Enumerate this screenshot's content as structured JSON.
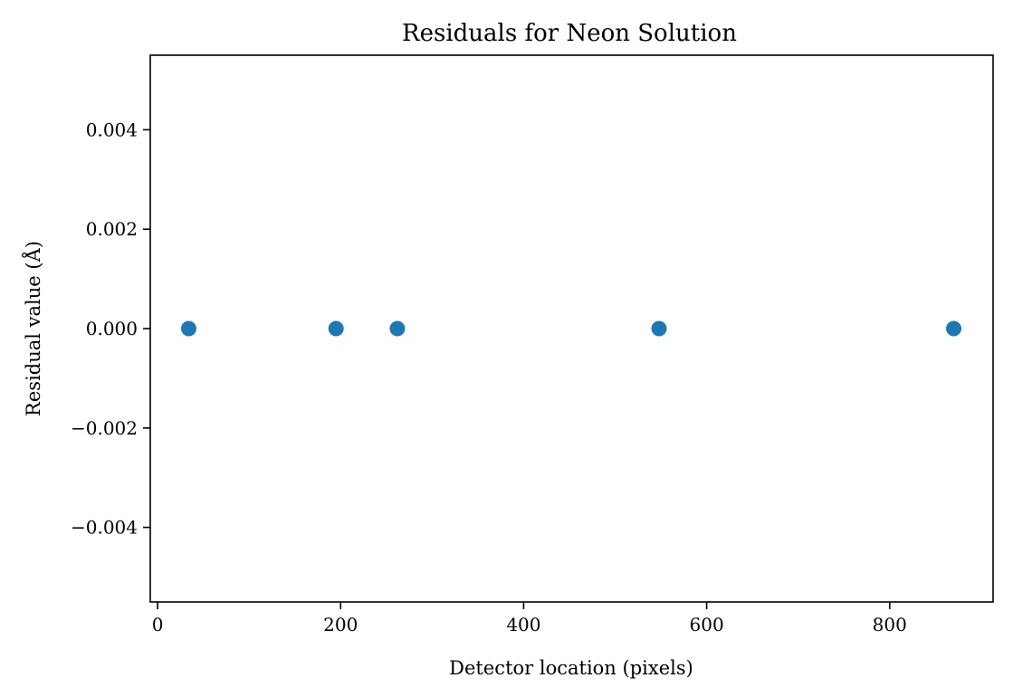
{
  "chart_data": {
    "type": "scatter",
    "title": "Residuals for Neon Solution",
    "xlabel": "Detector location (pixels)",
    "ylabel": "Residual value (Å)",
    "xlim": [
      -8,
      913
    ],
    "ylim": [
      -0.0055,
      0.0055
    ],
    "x_ticks": [
      0,
      200,
      400,
      600,
      800
    ],
    "x_tick_labels": [
      "0",
      "200",
      "400",
      "600",
      "800"
    ],
    "y_ticks": [
      -0.004,
      -0.002,
      0.0,
      0.002,
      0.004
    ],
    "y_tick_labels": [
      "−0.004",
      "−0.002",
      "0.000",
      "0.002",
      "0.004"
    ],
    "grid": false,
    "legend": false,
    "marker_color": "#1f77b4",
    "series": [
      {
        "x": [
          34,
          195,
          262,
          548,
          870
        ],
        "y": [
          0.0,
          0.0,
          0.0,
          0.0,
          0.0
        ]
      }
    ]
  }
}
